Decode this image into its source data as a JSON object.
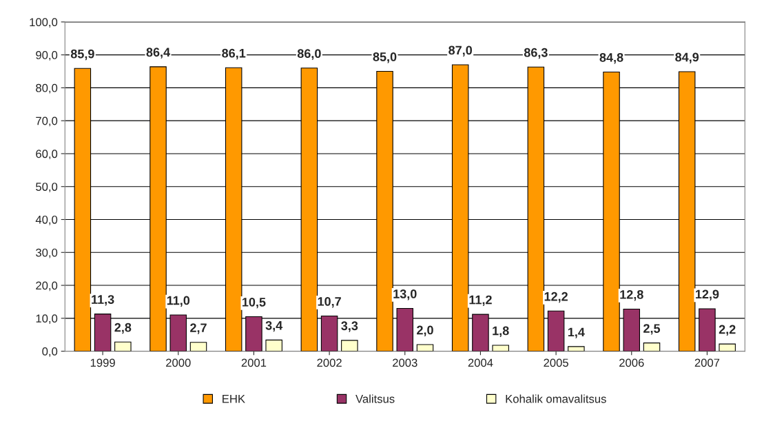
{
  "chart_data": {
    "type": "bar",
    "categories": [
      "1999",
      "2000",
      "2001",
      "2002",
      "2003",
      "2004",
      "2005",
      "2006",
      "2007"
    ],
    "series": [
      {
        "name": "EHK",
        "color": "#ff9900",
        "values": [
          85.9,
          86.4,
          86.1,
          86.0,
          85.0,
          87.0,
          86.3,
          84.8,
          84.9
        ],
        "value_labels": [
          "85,9",
          "86,4",
          "86,1",
          "86,0",
          "85,0",
          "87,0",
          "86,3",
          "84,8",
          "84,9"
        ]
      },
      {
        "name": "Valitsus",
        "color": "#993366",
        "values": [
          11.3,
          11.0,
          10.5,
          10.7,
          13.0,
          11.2,
          12.2,
          12.8,
          12.9
        ],
        "value_labels": [
          "11,3",
          "11,0",
          "10,5",
          "10,7",
          "13,0",
          "11,2",
          "12,2",
          "12,8",
          "12,9"
        ]
      },
      {
        "name": "Kohalik omavalitsus",
        "color": "#ffffcc",
        "values": [
          2.8,
          2.7,
          3.4,
          3.3,
          2.0,
          1.8,
          1.4,
          2.5,
          2.2
        ],
        "value_labels": [
          "2,8",
          "2,7",
          "3,4",
          "3,3",
          "2,0",
          "1,8",
          "1,4",
          "2,5",
          "2,2"
        ]
      }
    ],
    "ylim": [
      0,
      100
    ],
    "yticks": [
      {
        "value": 0,
        "label": "0,0"
      },
      {
        "value": 10,
        "label": "10,0"
      },
      {
        "value": 20,
        "label": "20,0"
      },
      {
        "value": 30,
        "label": "30,0"
      },
      {
        "value": 40,
        "label": "40,0"
      },
      {
        "value": 50,
        "label": "50,0"
      },
      {
        "value": 60,
        "label": "60,0"
      },
      {
        "value": 70,
        "label": "70,0"
      },
      {
        "value": 80,
        "label": "80,0"
      },
      {
        "value": 90,
        "label": "90,0"
      },
      {
        "value": 100,
        "label": "100,0"
      }
    ],
    "grid": "y",
    "legend": "bottom"
  }
}
